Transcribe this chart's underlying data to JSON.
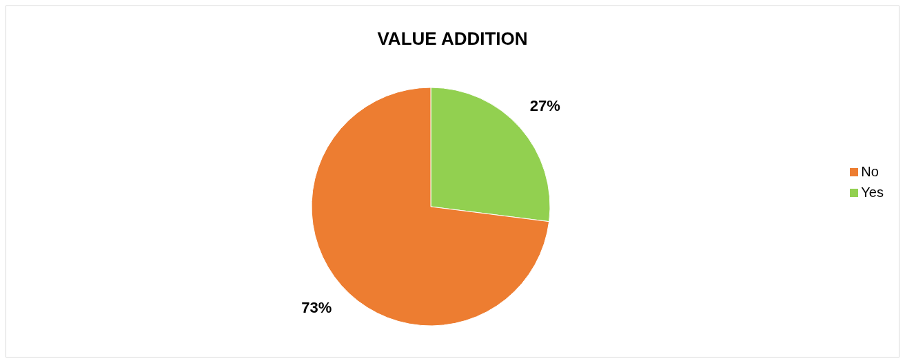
{
  "chart_data": {
    "type": "pie",
    "title": "VALUE ADDITION",
    "categories": [
      "Yes",
      "No"
    ],
    "values": [
      27,
      73
    ],
    "colors": [
      "#92d050",
      "#ed7d31"
    ],
    "value_labels": [
      "27%",
      "73%"
    ],
    "legend": "right"
  }
}
